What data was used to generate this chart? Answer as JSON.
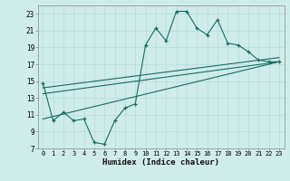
{
  "xlabel": "Humidex (Indice chaleur)",
  "ylabel": "",
  "background_color": "#ceecea",
  "grid_color": "#b8dfdc",
  "line_color": "#1a6b60",
  "xlim": [
    -0.5,
    23.5
  ],
  "ylim": [
    7,
    24
  ],
  "xticks": [
    0,
    1,
    2,
    3,
    4,
    5,
    6,
    7,
    8,
    9,
    10,
    11,
    12,
    13,
    14,
    15,
    16,
    17,
    18,
    19,
    20,
    21,
    22,
    23
  ],
  "yticks": [
    7,
    9,
    11,
    13,
    15,
    17,
    19,
    21,
    23
  ],
  "curve1_x": [
    0,
    1,
    2,
    3,
    4,
    5,
    6,
    7,
    8,
    9,
    10,
    11,
    12,
    13,
    14,
    15,
    16,
    17,
    18,
    19,
    20,
    21,
    22,
    23
  ],
  "curve1_y": [
    14.8,
    10.3,
    11.3,
    10.3,
    10.5,
    7.7,
    7.5,
    10.3,
    11.8,
    12.3,
    19.3,
    21.3,
    19.8,
    23.3,
    23.3,
    21.3,
    20.5,
    22.3,
    19.5,
    19.3,
    18.5,
    17.5,
    17.3,
    17.3
  ],
  "line1_x": [
    0,
    23
  ],
  "line1_y": [
    13.5,
    17.3
  ],
  "line2_x": [
    0,
    23
  ],
  "line2_y": [
    14.2,
    17.8
  ],
  "line3_x": [
    0,
    23
  ],
  "line3_y": [
    10.5,
    17.3
  ]
}
